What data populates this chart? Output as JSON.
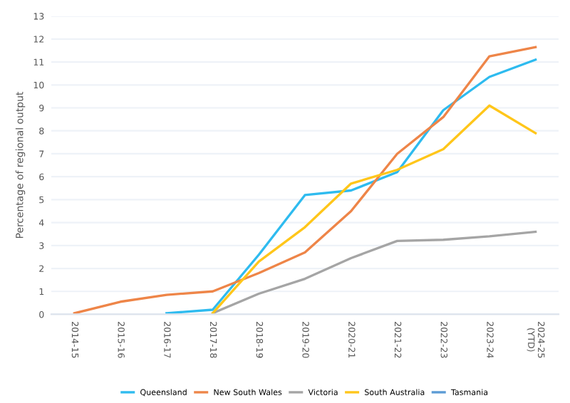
{
  "chart_data": {
    "type": "line",
    "ylabel": "Percentage of regional output",
    "categories": [
      "2014-15",
      "2015-16",
      "2016-17",
      "2017-18",
      "2018-19",
      "2019-20",
      "2020-21",
      "2021-22",
      "2022-23",
      "2023-24",
      "2024-25\n(YTD)"
    ],
    "series": [
      {
        "name": "Queensland",
        "color": "#2ebbef",
        "values": [
          null,
          null,
          0.05,
          0.2,
          2.6,
          5.2,
          5.4,
          6.2,
          8.9,
          10.35,
          11.1
        ]
      },
      {
        "name": "New South Wales",
        "color": "#ee8548",
        "values": [
          0.05,
          0.55,
          0.85,
          1.0,
          1.8,
          2.7,
          4.5,
          7.0,
          8.6,
          11.25,
          11.65
        ]
      },
      {
        "name": "Victoria",
        "color": "#a5a5a5",
        "values": [
          null,
          null,
          null,
          0.05,
          0.9,
          1.55,
          2.45,
          3.2,
          3.25,
          3.4,
          3.6
        ]
      },
      {
        "name": "South Australia",
        "color": "#ffc61a",
        "values": [
          null,
          null,
          null,
          0.05,
          2.3,
          3.8,
          5.7,
          6.3,
          7.2,
          9.1,
          7.9
        ]
      },
      {
        "name": "Tasmania",
        "color": "#5b9bd5",
        "values": [
          null,
          null,
          null,
          null,
          null,
          null,
          null,
          null,
          null,
          null,
          null
        ]
      }
    ],
    "ylim": [
      0,
      13
    ],
    "yticks": [
      0,
      1,
      2,
      3,
      4,
      5,
      6,
      7,
      8,
      9,
      10,
      11,
      12,
      13
    ],
    "grid": "y",
    "legend": "bottom",
    "marker": "none",
    "line_style": "solid"
  }
}
